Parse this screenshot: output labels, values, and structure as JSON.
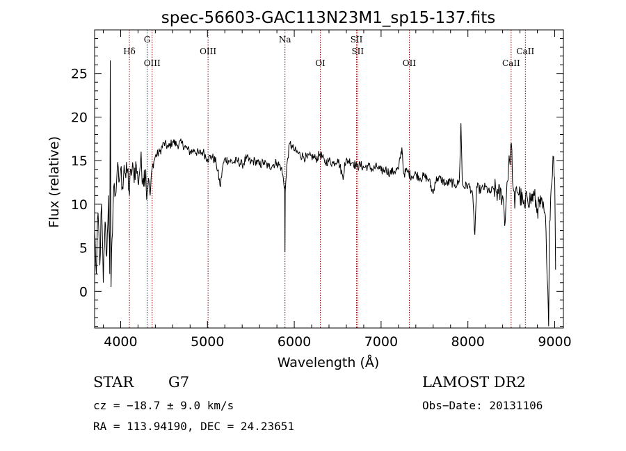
{
  "chart_data": {
    "type": "line",
    "title": "spec-56603-GAC113N23M1_sp15-137.fits",
    "xlabel": "Wavelength (Å)",
    "ylabel": "Flux (relative)",
    "xlim": [
      3700,
      9100
    ],
    "ylim": [
      -4.2,
      30
    ],
    "xticks": [
      4000,
      5000,
      6000,
      7000,
      8000,
      9000
    ],
    "yticks": [
      0,
      5,
      10,
      15,
      20,
      25
    ],
    "grid": false,
    "anchors": [
      [
        3700,
        7
      ],
      [
        3720,
        2
      ],
      [
        3740,
        9
      ],
      [
        3760,
        3
      ],
      [
        3780,
        10
      ],
      [
        3800,
        1
      ],
      [
        3820,
        8
      ],
      [
        3840,
        4
      ],
      [
        3860,
        11
      ],
      [
        3875,
        2
      ],
      [
        3880,
        26.5
      ],
      [
        3890,
        0.5
      ],
      [
        3900,
        6
      ],
      [
        3920,
        12
      ],
      [
        3940,
        11
      ],
      [
        3960,
        14
      ],
      [
        3980,
        12.5
      ],
      [
        4000,
        14
      ],
      [
        4020,
        12
      ],
      [
        4040,
        14.5
      ],
      [
        4060,
        13
      ],
      [
        4080,
        14
      ],
      [
        4101,
        11
      ],
      [
        4120,
        14
      ],
      [
        4150,
        13.5
      ],
      [
        4180,
        14.5
      ],
      [
        4200,
        12.5
      ],
      [
        4230,
        15
      ],
      [
        4260,
        13
      ],
      [
        4290,
        14
      ],
      [
        4300,
        10.5
      ],
      [
        4320,
        13
      ],
      [
        4340,
        11
      ],
      [
        4360,
        14
      ],
      [
        4400,
        15.5
      ],
      [
        4450,
        16
      ],
      [
        4500,
        17
      ],
      [
        4550,
        16.5
      ],
      [
        4600,
        17.2
      ],
      [
        4650,
        16.8
      ],
      [
        4700,
        17
      ],
      [
        4750,
        16.5
      ],
      [
        4800,
        16
      ],
      [
        4850,
        16.2
      ],
      [
        4900,
        15.8
      ],
      [
        4950,
        16
      ],
      [
        5000,
        15.2
      ],
      [
        5050,
        15.5
      ],
      [
        5100,
        14.8
      ],
      [
        5150,
        12
      ],
      [
        5170,
        14
      ],
      [
        5200,
        15.2
      ],
      [
        5250,
        15
      ],
      [
        5300,
        14.8
      ],
      [
        5350,
        15
      ],
      [
        5400,
        14.5
      ],
      [
        5450,
        15.3
      ],
      [
        5500,
        14.8
      ],
      [
        5550,
        15
      ],
      [
        5600,
        14.5
      ],
      [
        5650,
        14.8
      ],
      [
        5700,
        14.3
      ],
      [
        5750,
        14.5
      ],
      [
        5800,
        14.8
      ],
      [
        5850,
        14.2
      ],
      [
        5890,
        12
      ],
      [
        5893,
        4.5
      ],
      [
        5896,
        11.5
      ],
      [
        5920,
        15
      ],
      [
        5950,
        17
      ],
      [
        5980,
        16.5
      ],
      [
        6000,
        16.2
      ],
      [
        6050,
        15.8
      ],
      [
        6100,
        15.5
      ],
      [
        6150,
        15.3
      ],
      [
        6200,
        15.5
      ],
      [
        6250,
        15.2
      ],
      [
        6300,
        15.8
      ],
      [
        6350,
        14.8
      ],
      [
        6400,
        15
      ],
      [
        6450,
        14.7
      ],
      [
        6500,
        15.2
      ],
      [
        6550,
        13.5
      ],
      [
        6563,
        12.8
      ],
      [
        6580,
        14.8
      ],
      [
        6620,
        15
      ],
      [
        6680,
        14.8
      ],
      [
        6720,
        14.3
      ],
      [
        6760,
        14.5
      ],
      [
        6800,
        14.2
      ],
      [
        6850,
        14.4
      ],
      [
        6900,
        14
      ],
      [
        6950,
        14.3
      ],
      [
        7000,
        13.8
      ],
      [
        7050,
        14
      ],
      [
        7100,
        13.6
      ],
      [
        7150,
        13.8
      ],
      [
        7200,
        14
      ],
      [
        7240,
        16.5
      ],
      [
        7260,
        13.5
      ],
      [
        7300,
        13.8
      ],
      [
        7350,
        13.2
      ],
      [
        7400,
        13.5
      ],
      [
        7450,
        13
      ],
      [
        7500,
        13.2
      ],
      [
        7550,
        12.8
      ],
      [
        7600,
        11.2
      ],
      [
        7620,
        12.5
      ],
      [
        7650,
        13
      ],
      [
        7700,
        12.8
      ],
      [
        7750,
        12.3
      ],
      [
        7800,
        12.6
      ],
      [
        7850,
        12.2
      ],
      [
        7900,
        12.5
      ],
      [
        7920,
        19.3
      ],
      [
        7935,
        12.5
      ],
      [
        7950,
        12
      ],
      [
        8000,
        12.2
      ],
      [
        8050,
        11.5
      ],
      [
        8080,
        6.5
      ],
      [
        8100,
        12
      ],
      [
        8150,
        11.6
      ],
      [
        8200,
        12
      ],
      [
        8250,
        11.3
      ],
      [
        8300,
        11.8
      ],
      [
        8350,
        11.2
      ],
      [
        8400,
        11
      ],
      [
        8430,
        8
      ],
      [
        8450,
        12.5
      ],
      [
        8480,
        15
      ],
      [
        8500,
        17
      ],
      [
        8520,
        12
      ],
      [
        8540,
        9.5
      ],
      [
        8560,
        12
      ],
      [
        8600,
        11
      ],
      [
        8640,
        10
      ],
      [
        8660,
        9.5
      ],
      [
        8680,
        11
      ],
      [
        8720,
        10.5
      ],
      [
        8760,
        11
      ],
      [
        8800,
        9.5
      ],
      [
        8840,
        10
      ],
      [
        8880,
        9
      ],
      [
        8900,
        7
      ],
      [
        8920,
        0.5
      ],
      [
        8930,
        -4
      ],
      [
        8940,
        8
      ],
      [
        8960,
        12
      ],
      [
        8980,
        15.5
      ],
      [
        9000,
        13
      ],
      [
        9010,
        2.5
      ]
    ],
    "spectral_lines": [
      {
        "label": "Hδ",
        "wavelength": 4101,
        "row": 2
      },
      {
        "label": "G",
        "wavelength": 4305,
        "row": 1
      },
      {
        "label": "OIII",
        "wavelength": 4363,
        "row": 3
      },
      {
        "label": "OIII",
        "wavelength": 5007,
        "row": 2
      },
      {
        "label": "Na",
        "wavelength": 5893,
        "row": 1
      },
      {
        "label": "OI",
        "wavelength": 6300,
        "row": 3
      },
      {
        "label": "SII",
        "wavelength": 6717,
        "row": 1
      },
      {
        "label": "SII",
        "wavelength": 6731,
        "row": 2
      },
      {
        "label": "OII",
        "wavelength": 7325,
        "row": 3
      },
      {
        "label": "CaII",
        "wavelength": 8498,
        "row": 3
      },
      {
        "label": "CaII",
        "wavelength": 8662,
        "row": 2
      }
    ],
    "line_color": "#000000",
    "marker_color": "#8b0000"
  },
  "info": {
    "object_class": "STAR",
    "subclass": "G7",
    "survey": "LAMOST DR2",
    "cz": "cz = −18.7 ± 9.0 km/s",
    "obs_date": "Obs−Date: 20131106",
    "coords": "RA = 113.94190, DEC =  24.23651"
  }
}
